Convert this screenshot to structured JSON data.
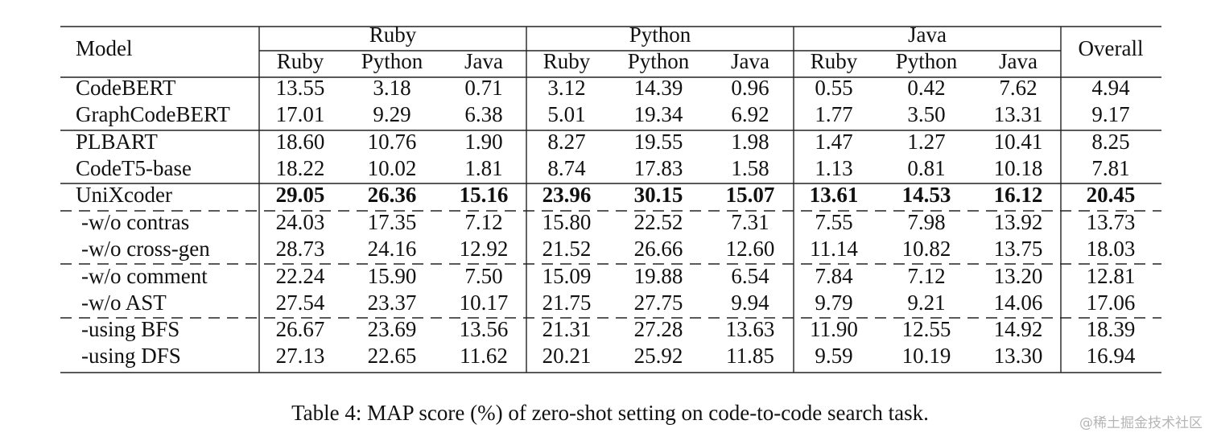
{
  "table": {
    "header": {
      "model": "Model",
      "groups": [
        "Ruby",
        "Python",
        "Java"
      ],
      "overall": "Overall",
      "subcolumns": [
        "Ruby",
        "Python",
        "Java",
        "Ruby",
        "Python",
        "Java",
        "Ruby",
        "Python",
        "Java"
      ]
    },
    "rows": [
      [
        "CodeBERT",
        "13.55",
        "3.18",
        "0.71",
        "3.12",
        "14.39",
        "0.96",
        "0.55",
        "0.42",
        "7.62",
        "4.94"
      ],
      [
        "GraphCodeBERT",
        "17.01",
        "9.29",
        "6.38",
        "5.01",
        "19.34",
        "6.92",
        "1.77",
        "3.50",
        "13.31",
        "9.17"
      ],
      [
        "PLBART",
        "18.60",
        "10.76",
        "1.90",
        "8.27",
        "19.55",
        "1.98",
        "1.47",
        "1.27",
        "10.41",
        "8.25"
      ],
      [
        "CodeT5-base",
        "18.22",
        "10.02",
        "1.81",
        "8.74",
        "17.83",
        "1.58",
        "1.13",
        "0.81",
        "10.18",
        "7.81"
      ],
      [
        "UniXcoder",
        "29.05",
        "26.36",
        "15.16",
        "23.96",
        "30.15",
        "15.07",
        "13.61",
        "14.53",
        "16.12",
        "20.45"
      ],
      [
        "-w/o contras",
        "24.03",
        "17.35",
        "7.12",
        "15.80",
        "22.52",
        "7.31",
        "7.55",
        "7.98",
        "13.92",
        "13.73"
      ],
      [
        "-w/o cross-gen",
        "28.73",
        "24.16",
        "12.92",
        "21.52",
        "26.66",
        "12.60",
        "11.14",
        "10.82",
        "13.75",
        "18.03"
      ],
      [
        "-w/o comment",
        "22.24",
        "15.90",
        "7.50",
        "15.09",
        "19.88",
        "6.54",
        "7.84",
        "7.12",
        "13.20",
        "12.81"
      ],
      [
        "-w/o AST",
        "27.54",
        "23.37",
        "10.17",
        "21.75",
        "27.75",
        "9.94",
        "9.79",
        "9.21",
        "14.06",
        "17.06"
      ],
      [
        "-using BFS",
        "26.67",
        "23.69",
        "13.56",
        "21.31",
        "27.28",
        "13.63",
        "11.90",
        "12.55",
        "14.92",
        "18.39"
      ],
      [
        "-using DFS",
        "27.13",
        "22.65",
        "11.62",
        "20.21",
        "25.92",
        "11.85",
        "9.59",
        "10.19",
        "13.30",
        "16.94"
      ]
    ]
  },
  "caption": "Table 4: MAP score (%) of zero-shot setting on code-to-code search task.",
  "watermark": "@稀土掘金技术社区"
}
